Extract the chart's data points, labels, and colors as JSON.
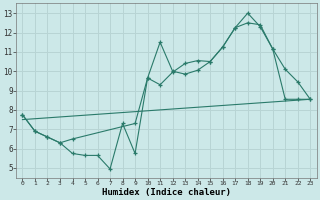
{
  "xlabel": "Humidex (Indice chaleur)",
  "bg_color": "#cce8e8",
  "grid_color": "#b8d4d4",
  "line_color": "#2a7a6a",
  "xlim": [
    -0.5,
    23.5
  ],
  "ylim": [
    4.5,
    13.5
  ],
  "xticks": [
    0,
    1,
    2,
    3,
    4,
    5,
    6,
    7,
    8,
    9,
    10,
    11,
    12,
    13,
    14,
    15,
    16,
    17,
    18,
    19,
    20,
    21,
    22,
    23
  ],
  "yticks": [
    5,
    6,
    7,
    8,
    9,
    10,
    11,
    12,
    13
  ],
  "series1_x": [
    0,
    1,
    2,
    3,
    4,
    5,
    6,
    7,
    8,
    9,
    10,
    11,
    12,
    13,
    14,
    15,
    16,
    17,
    18,
    19,
    20,
    21,
    22,
    23
  ],
  "series1_y": [
    7.75,
    6.9,
    6.6,
    6.3,
    5.75,
    5.65,
    5.65,
    4.95,
    7.3,
    5.75,
    9.65,
    11.5,
    10.0,
    9.85,
    10.05,
    10.5,
    11.25,
    12.25,
    13.0,
    12.3,
    11.15,
    10.1,
    9.45,
    8.55
  ],
  "series2_x": [
    0,
    1,
    2,
    3,
    4,
    9,
    10,
    11,
    12,
    13,
    14,
    15,
    16,
    17,
    18,
    19,
    20,
    21,
    22,
    23
  ],
  "series2_y": [
    7.75,
    6.9,
    6.6,
    6.3,
    6.5,
    7.3,
    9.65,
    9.3,
    9.95,
    10.4,
    10.55,
    10.5,
    11.25,
    12.25,
    12.5,
    12.4,
    11.15,
    8.55,
    8.55,
    8.55
  ],
  "series3_x": [
    0,
    23
  ],
  "series3_y": [
    7.5,
    8.55
  ]
}
